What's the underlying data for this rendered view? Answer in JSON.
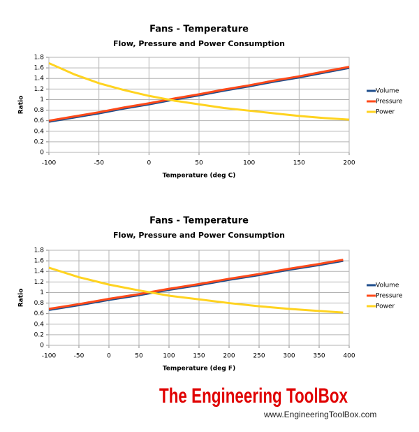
{
  "chart_data": [
    {
      "type": "line",
      "title": "Fans - Temperature",
      "subtitle": "Flow, Pressure and Power Consumption",
      "x_label": "Temperature (deg C)",
      "y_label": "Ratio",
      "x": [
        -100,
        -75,
        -50,
        -25,
        0,
        25,
        50,
        75,
        100,
        125,
        150,
        175,
        200
      ],
      "series": [
        {
          "name": "Volume",
          "color": "#1f4e8c",
          "values": [
            0.58,
            0.66,
            0.74,
            0.83,
            0.91,
            1,
            1.08,
            1.17,
            1.25,
            1.34,
            1.42,
            1.51,
            1.6
          ]
        },
        {
          "name": "Pressure",
          "color": "#ff4a1a",
          "values": [
            0.6,
            0.68,
            0.76,
            0.85,
            0.93,
            1.02,
            1.1,
            1.19,
            1.27,
            1.36,
            1.44,
            1.53,
            1.62
          ]
        },
        {
          "name": "Power",
          "color": "#ffd320",
          "values": [
            1.69,
            1.48,
            1.31,
            1.18,
            1.07,
            0.98,
            0.91,
            0.84,
            0.79,
            0.74,
            0.69,
            0.65,
            0.62
          ]
        }
      ],
      "xlim": [
        -100,
        200
      ],
      "xticks": [
        -100,
        -50,
        0,
        50,
        100,
        150,
        200
      ],
      "ylim": [
        0,
        1.8
      ],
      "yticks": [
        0,
        0.2,
        0.4,
        0.6,
        0.8,
        1,
        1.2,
        1.4,
        1.6,
        1.8
      ],
      "grid": true,
      "legend": "right"
    },
    {
      "type": "line",
      "title": "Fans - Temperature",
      "subtitle": "Flow, Pressure and Power Consumption",
      "x_label": "Temperature (deg F)",
      "y_label": "Ratio",
      "x": [
        -100,
        -50,
        0,
        50,
        100,
        150,
        200,
        250,
        300,
        350,
        390
      ],
      "series": [
        {
          "name": "Volume",
          "color": "#1f4e8c",
          "values": [
            0.67,
            0.76,
            0.86,
            0.95,
            1.05,
            1.14,
            1.24,
            1.33,
            1.43,
            1.52,
            1.6
          ]
        },
        {
          "name": "Pressure",
          "color": "#ff4a1a",
          "values": [
            0.69,
            0.78,
            0.88,
            0.97,
            1.07,
            1.16,
            1.26,
            1.35,
            1.45,
            1.54,
            1.62
          ]
        },
        {
          "name": "Power",
          "color": "#ffd320",
          "values": [
            1.47,
            1.29,
            1.15,
            1.04,
            0.94,
            0.87,
            0.8,
            0.74,
            0.69,
            0.65,
            0.62
          ]
        }
      ],
      "xlim": [
        -100,
        400
      ],
      "xticks": [
        -100,
        -50,
        0,
        50,
        100,
        150,
        200,
        250,
        300,
        350,
        400
      ],
      "ylim": [
        0,
        1.8
      ],
      "yticks": [
        0,
        0.2,
        0.4,
        0.6,
        0.8,
        1,
        1.2,
        1.4,
        1.6,
        1.8
      ],
      "grid": true,
      "legend": "right"
    }
  ],
  "footer": {
    "logo": "The Engineering ToolBox",
    "url": "www.EngineeringToolBox.com"
  }
}
